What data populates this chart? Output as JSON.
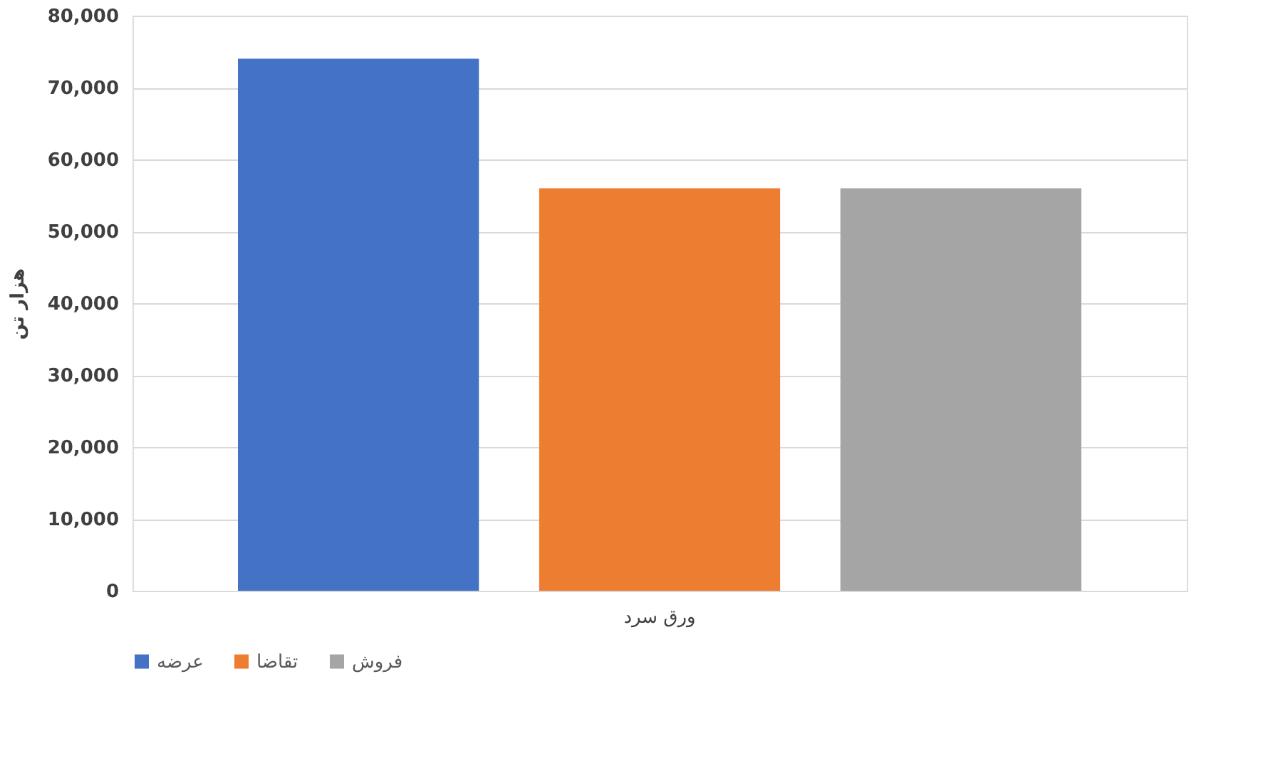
{
  "chart_data": {
    "type": "bar",
    "categories": [
      "ورق سرد"
    ],
    "ylabel": "هزار تن",
    "series": [
      {
        "name": "عرضه",
        "color": "#4472c4",
        "values": [
          74000
        ]
      },
      {
        "name": "تقاضا",
        "color": "#ed7d31",
        "values": [
          56000
        ]
      },
      {
        "name": "فروش",
        "color": "#a5a5a5",
        "values": [
          56000
        ]
      }
    ],
    "ylim": [
      0,
      80000
    ],
    "yticks": [
      0,
      {
        "value": 10000,
        "label": "10,000"
      },
      {
        "value": 20000,
        "label": "20,000"
      },
      {
        "value": 30000,
        "label": "30,000"
      },
      {
        "value": 40000,
        "label": "40,000"
      },
      {
        "value": 50000,
        "label": "50,000"
      },
      {
        "value": 60000,
        "label": "60,000"
      },
      {
        "value": 70000,
        "label": "70,000"
      },
      {
        "value": 80000,
        "label": "80,000"
      }
    ],
    "grid": "y",
    "legend": "bottom"
  }
}
